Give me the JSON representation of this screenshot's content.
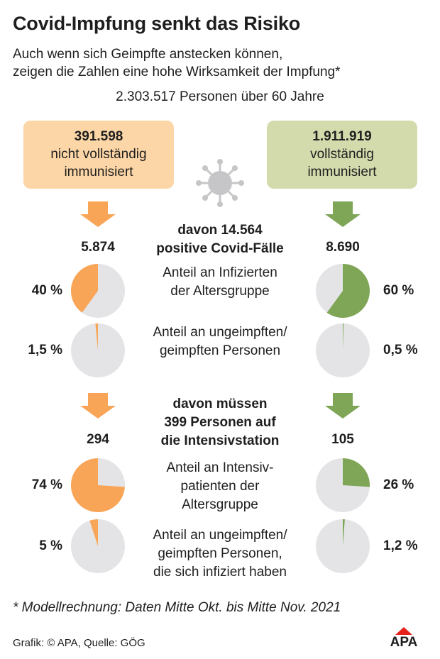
{
  "title": "Covid-Impfung senkt das Risiko",
  "subtitle_line1": "Auch wenn sich Geimpfte anstecken können,",
  "subtitle_line2": "zeigen die Zahlen eine hohe Wirksamkeit der Impfung*",
  "total_label": "2.303.517 Personen über 60 Jahre",
  "groups": {
    "unvaccinated": {
      "count": "391.598",
      "label_line1": "nicht vollständig",
      "label_line2": "immunisiert",
      "color": "#F9A557",
      "box_color": "#FCD6A6"
    },
    "vaccinated": {
      "count": "1.911.919",
      "label_line1": "vollständig",
      "label_line2": "immunisiert",
      "color": "#7EA656",
      "box_color": "#D3DBAD"
    }
  },
  "pie_background": "#E4E4E6",
  "sections": {
    "infections": {
      "heading_line1": "davon 14.564",
      "heading_line2": "positive Covid-Fälle",
      "left_count": "5.874",
      "right_count": "8.690"
    },
    "icu": {
      "heading_line1": "davon müssen",
      "heading_line2": "399 Personen auf",
      "heading_line3": "die Intensivstation",
      "left_count": "294",
      "right_count": "105"
    }
  },
  "rows": {
    "share_infected": {
      "label_line1": "Anteil an Infizierten",
      "label_line2": "der Altersgruppe"
    },
    "share_group_infected": {
      "label_line1": "Anteil an ungeimpften/",
      "label_line2": "geimpften Personen"
    },
    "share_icu": {
      "label_line1": "Anteil an Intensiv-",
      "label_line2": "patienten der",
      "label_line3": "Altersgruppe"
    },
    "share_group_icu": {
      "label_line1": "Anteil an ungeimpften/",
      "label_line2": "geimpften Personen,",
      "label_line3": "die sich infiziert haben"
    }
  },
  "chart_data": {
    "type": "pie",
    "pies": [
      {
        "row": "share_infected",
        "group": "unvaccinated",
        "value": 40,
        "label": "40 %"
      },
      {
        "row": "share_infected",
        "group": "vaccinated",
        "value": 60,
        "label": "60 %"
      },
      {
        "row": "share_group_infected",
        "group": "unvaccinated",
        "value": 1.5,
        "label": "1,5 %"
      },
      {
        "row": "share_group_infected",
        "group": "vaccinated",
        "value": 0.5,
        "label": "0,5 %"
      },
      {
        "row": "share_icu",
        "group": "unvaccinated",
        "value": 74,
        "label": "74 %"
      },
      {
        "row": "share_icu",
        "group": "vaccinated",
        "value": 26,
        "label": "26 %"
      },
      {
        "row": "share_group_icu",
        "group": "unvaccinated",
        "value": 5,
        "label": "5 %"
      },
      {
        "row": "share_group_icu",
        "group": "vaccinated",
        "value": 1.2,
        "label": "1,2 %"
      }
    ]
  },
  "footnote": "* Modellrechnung: Daten Mitte Okt. bis Mitte Nov. 2021",
  "credit": "Grafik: © APA, Quelle: GÖG",
  "logo_text": "APA"
}
